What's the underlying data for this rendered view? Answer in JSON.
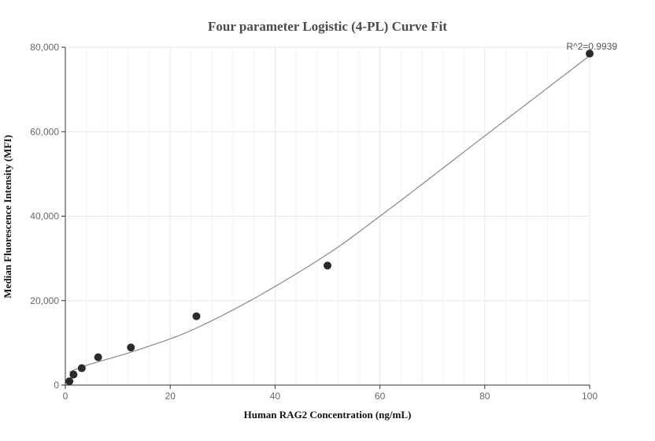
{
  "chart_data": {
    "type": "scatter",
    "title": "Four parameter Logistic (4-PL) Curve Fit",
    "xlabel": "Human RAG2 Concentration (ng/mL)",
    "ylabel": "Median Fluorescence Intensity (MFI)",
    "xlim": [
      0,
      100
    ],
    "ylim": [
      0,
      80000
    ],
    "x_ticks": [
      0,
      20,
      40,
      60,
      80,
      100
    ],
    "x_tick_labels": [
      "0",
      "20",
      "40",
      "60",
      "80",
      "100"
    ],
    "y_ticks": [
      0,
      20000,
      40000,
      60000,
      80000
    ],
    "y_tick_labels": [
      "0",
      "20,000",
      "40,000",
      "60,000",
      "80,000"
    ],
    "x_minor_step": 4,
    "grid": true,
    "legend": "none",
    "annotation": "R^2=0.9939",
    "series": [
      {
        "type": "scatter",
        "x": [
          0.78,
          1.56,
          3.13,
          6.25,
          12.5,
          25,
          50,
          100
        ],
        "y": [
          900,
          2500,
          4000,
          6600,
          8900,
          16300,
          28300,
          78500
        ]
      },
      {
        "type": "line",
        "x": [
          0.78,
          1.56,
          3.13,
          6.25,
          12.5,
          25,
          50,
          60,
          80,
          100
        ],
        "y": [
          3100,
          3500,
          4300,
          5500,
          7800,
          13500,
          31000,
          40000,
          59000,
          78000
        ]
      }
    ],
    "colors": {
      "points": "#2b2b2b",
      "curve": "#888888",
      "grid": "#e6e6ef",
      "minor_grid": "#f2f2f6",
      "axis": "#333333"
    }
  }
}
